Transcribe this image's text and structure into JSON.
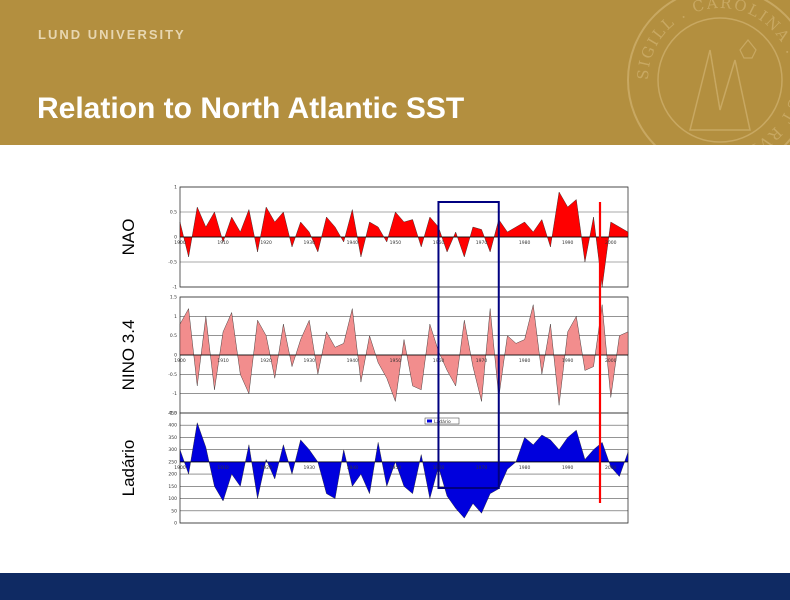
{
  "header": {
    "university": "LUND UNIVERSITY",
    "title": "Relation to North Atlantic SST",
    "seal_text": "SIGILL . CAROLINA . AD UT RVMQUE",
    "bg_color": "#b38f3f",
    "seal_icon": "lund-university-seal-icon"
  },
  "footer": {
    "bg_color": "#0f2a63"
  },
  "chart_data": [
    {
      "type": "area",
      "panel": "NAO",
      "ylabel": "NAO",
      "color": "#ff0000",
      "ylim": [
        -1,
        1
      ],
      "yticks": [
        "1",
        "0.5",
        "0",
        "-0.5",
        "-1"
      ],
      "xticks": [
        "1900",
        "1910",
        "1920",
        "1930",
        "1940",
        "1950",
        "1960",
        "1970",
        "1980",
        "1990",
        "2000"
      ],
      "x": [
        1900,
        1902,
        1904,
        1906,
        1908,
        1910,
        1912,
        1914,
        1916,
        1918,
        1920,
        1922,
        1924,
        1926,
        1928,
        1930,
        1932,
        1934,
        1936,
        1938,
        1940,
        1942,
        1944,
        1946,
        1948,
        1950,
        1952,
        1954,
        1956,
        1958,
        1960,
        1962,
        1964,
        1966,
        1968,
        1970,
        1972,
        1974,
        1976,
        1978,
        1980,
        1982,
        1984,
        1986,
        1988,
        1990,
        1992,
        1994,
        1996,
        1998,
        2000,
        2002,
        2004
      ],
      "values": [
        0.3,
        -0.4,
        0.6,
        0.2,
        0.5,
        -0.1,
        0.4,
        0.1,
        0.55,
        -0.3,
        0.6,
        0.3,
        0.5,
        -0.2,
        0.3,
        0.1,
        -0.3,
        0.4,
        0.2,
        -0.1,
        0.55,
        -0.4,
        0.3,
        0.2,
        -0.1,
        0.5,
        0.3,
        0.35,
        -0.2,
        0.4,
        0.2,
        -0.3,
        0.1,
        -0.4,
        0.2,
        0.15,
        -0.3,
        0.35,
        0.1,
        0.2,
        0.3,
        0.1,
        0.35,
        -0.2,
        0.9,
        0.6,
        0.75,
        -0.5,
        0.4,
        -1.0,
        0.3,
        0.2,
        0.1
      ]
    },
    {
      "type": "area",
      "panel": "NINO 3.4",
      "ylabel": "NINO 3.4",
      "color": "#f28d8d",
      "ylim": [
        -1.5,
        1.5
      ],
      "yticks": [
        "1.5",
        "1",
        "0.5",
        "0",
        "-0.5",
        "-1",
        "-1.5"
      ],
      "xticks": [
        "1900",
        "1910",
        "1920",
        "1930",
        "1940",
        "1950",
        "1960",
        "1970",
        "1980",
        "1990",
        "2000"
      ],
      "x": [
        1900,
        1902,
        1904,
        1906,
        1908,
        1910,
        1912,
        1914,
        1916,
        1918,
        1920,
        1922,
        1924,
        1926,
        1928,
        1930,
        1932,
        1934,
        1936,
        1938,
        1940,
        1942,
        1944,
        1946,
        1948,
        1950,
        1952,
        1954,
        1956,
        1958,
        1960,
        1962,
        1964,
        1966,
        1968,
        1970,
        1972,
        1974,
        1976,
        1978,
        1980,
        1982,
        1984,
        1986,
        1988,
        1990,
        1992,
        1994,
        1996,
        1998,
        2000,
        2002,
        2004
      ],
      "values": [
        0.8,
        1.2,
        -0.8,
        1.0,
        -0.9,
        0.6,
        1.1,
        -0.5,
        -1.0,
        0.9,
        0.5,
        -0.6,
        0.8,
        -0.3,
        0.4,
        0.9,
        -0.5,
        0.6,
        0.2,
        0.3,
        1.2,
        -0.7,
        0.5,
        -0.2,
        -0.6,
        -1.2,
        0.4,
        -0.8,
        -0.9,
        0.8,
        0.1,
        -0.4,
        -0.8,
        0.9,
        -0.3,
        -1.2,
        1.2,
        -1.1,
        0.5,
        0.3,
        0.4,
        1.3,
        -0.5,
        0.8,
        -1.3,
        0.6,
        1.0,
        -0.4,
        -0.3,
        1.3,
        -1.1,
        0.5,
        0.6
      ]
    },
    {
      "type": "area",
      "panel": "Ladário",
      "ylabel": "Ladário",
      "color": "#0000dd",
      "baseline": 250,
      "ylim": [
        0,
        450
      ],
      "yticks": [
        "450",
        "400",
        "350",
        "300",
        "250",
        "200",
        "150",
        "100",
        "50",
        "0"
      ],
      "legend_label": "Ladário",
      "xticks": [
        "1900",
        "1910",
        "1920",
        "1930",
        "1940",
        "1950",
        "1960",
        "1970",
        "1980",
        "1990",
        "2000"
      ],
      "x": [
        1900,
        1902,
        1904,
        1906,
        1908,
        1910,
        1912,
        1914,
        1916,
        1918,
        1920,
        1922,
        1924,
        1926,
        1928,
        1930,
        1932,
        1934,
        1936,
        1938,
        1940,
        1942,
        1944,
        1946,
        1948,
        1950,
        1952,
        1954,
        1956,
        1958,
        1960,
        1962,
        1964,
        1966,
        1968,
        1970,
        1972,
        1974,
        1976,
        1978,
        1980,
        1982,
        1984,
        1986,
        1988,
        1990,
        1992,
        1994,
        1996,
        1998,
        2000,
        2002,
        2004
      ],
      "values": [
        300,
        200,
        410,
        310,
        150,
        90,
        200,
        150,
        320,
        100,
        260,
        180,
        320,
        200,
        340,
        300,
        250,
        120,
        100,
        300,
        150,
        200,
        120,
        330,
        150,
        250,
        150,
        120,
        280,
        100,
        230,
        110,
        60,
        20,
        80,
        40,
        120,
        140,
        220,
        250,
        350,
        320,
        360,
        340,
        300,
        350,
        380,
        260,
        300,
        330,
        230,
        190,
        290
      ]
    }
  ],
  "highlight": {
    "box_color": "#000080",
    "line_color": "#ff0000"
  }
}
